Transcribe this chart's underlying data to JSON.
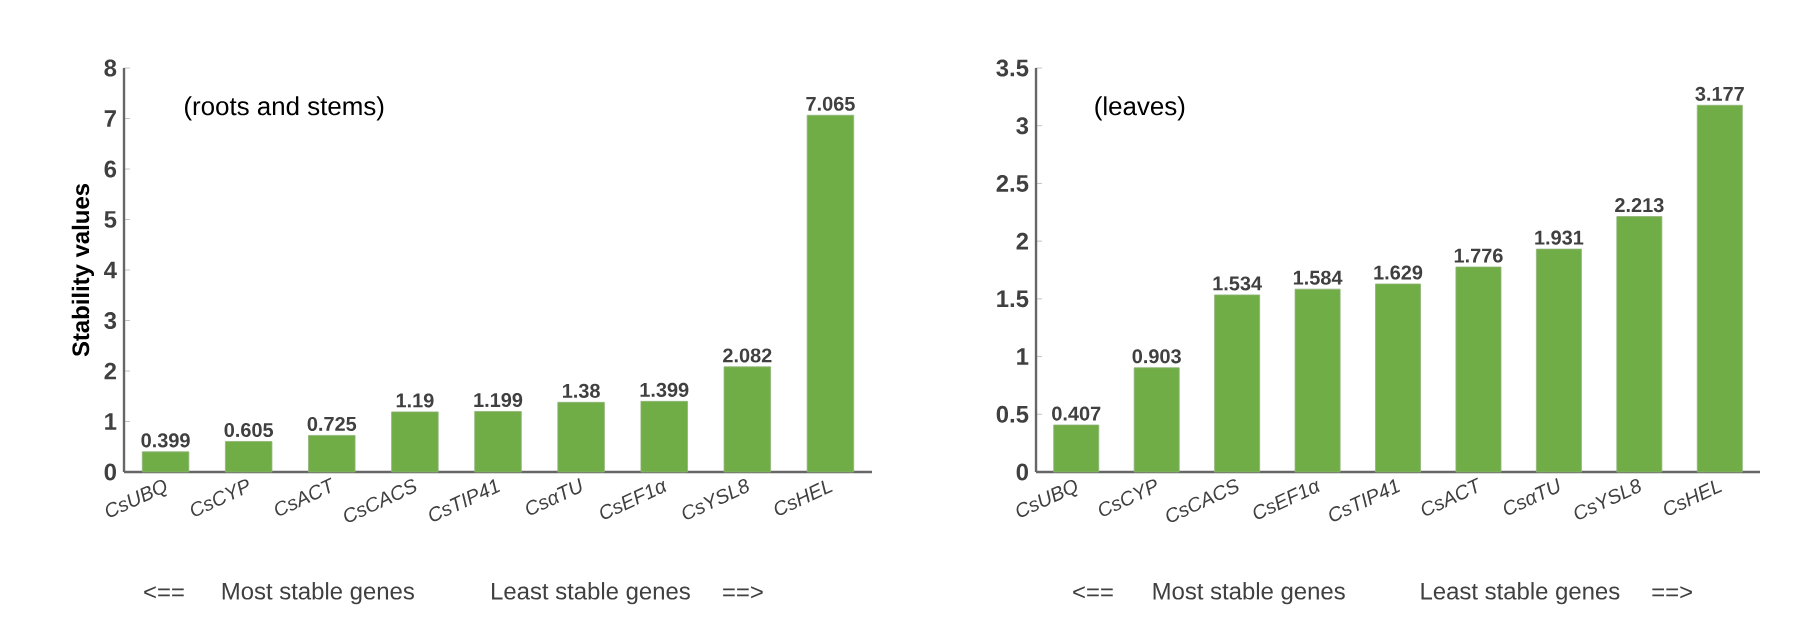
{
  "chart_data": [
    {
      "type": "bar",
      "title": "(roots and stems)",
      "ylabel": "Stability values",
      "categories": [
        "CsUBQ",
        "CsCYP",
        "CsACT",
        "CsCACS",
        "CsTIP41",
        "CsαTU",
        "CsEF1α",
        "CsYSL8",
        "CsHEL"
      ],
      "values": [
        0.399,
        0.605,
        0.725,
        1.19,
        1.199,
        1.38,
        1.399,
        2.082,
        7.065
      ],
      "color": "#70ad47",
      "ylim": [
        0,
        8
      ],
      "yticks": [
        0,
        1,
        2,
        3,
        4,
        5,
        6,
        7,
        8
      ],
      "data_labels": true,
      "grid": false,
      "annotations": [
        "<==",
        "Most stable genes",
        "Least stable genes",
        "==>"
      ]
    },
    {
      "type": "bar",
      "title": "(leaves)",
      "categories": [
        "CsUBQ",
        "CsCYP",
        "CsCACS",
        "CsEF1α",
        "CsTIP41",
        "CsACT",
        "CsαTU",
        "CsYSL8",
        "CsHEL"
      ],
      "values": [
        0.407,
        0.903,
        1.534,
        1.584,
        1.629,
        1.776,
        1.931,
        2.213,
        3.177
      ],
      "color": "#70ad47",
      "ylim": [
        0,
        3.5
      ],
      "yticks": [
        0,
        0.5,
        1,
        1.5,
        2,
        2.5,
        3,
        3.5
      ],
      "data_labels": true,
      "grid": false,
      "annotations": [
        "<==",
        "Most stable genes",
        "Least stable genes",
        "==>"
      ]
    }
  ]
}
